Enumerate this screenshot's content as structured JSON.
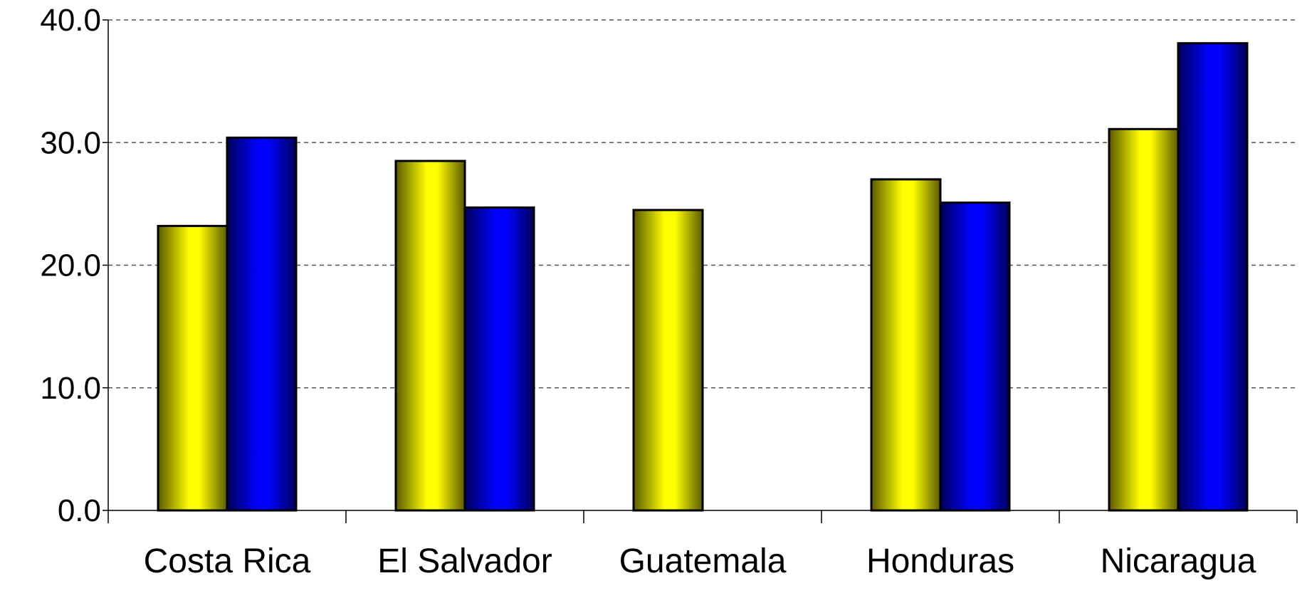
{
  "chart_data": {
    "type": "bar",
    "categories": [
      "Costa Rica",
      "El Salvador",
      "Guatemala",
      "Honduras",
      "Nicaragua"
    ],
    "series": [
      {
        "color": "#ffff00",
        "values": [
          23.2,
          28.5,
          24.5,
          27.0,
          31.1
        ]
      },
      {
        "color": "#0000ff",
        "values": [
          30.4,
          24.7,
          null,
          25.1,
          38.1
        ]
      }
    ],
    "ylim": [
      0,
      40
    ],
    "yticks": [
      0,
      10,
      20,
      30,
      40
    ],
    "ytick_labels": [
      "0.0",
      "10.0",
      "20.0",
      "30.0",
      "40.0"
    ],
    "title": "",
    "xlabel": "",
    "ylabel": "",
    "grid": true,
    "legend": "none"
  }
}
